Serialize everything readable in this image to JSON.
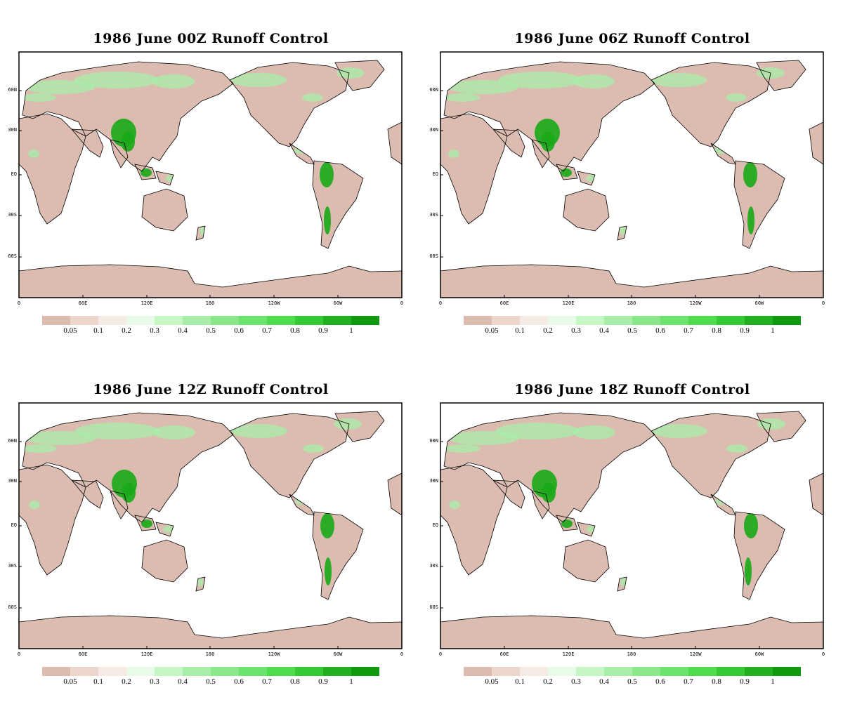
{
  "panels": [
    {
      "title": "1986 June 00Z Runoff Control"
    },
    {
      "title": "1986  June 06Z Runoff Control"
    },
    {
      "title": "1986  June 12Z Runoff Control"
    },
    {
      "title": "1986  June 18Z Runoff Control"
    }
  ],
  "lat_ticks": [
    "60N",
    "30N",
    "EQ",
    "30S",
    "60S"
  ],
  "lon_ticks": [
    "0",
    "60E",
    "120E",
    "180",
    "120W",
    "60W",
    "0"
  ],
  "colorbar": {
    "labels": [
      "0.05",
      "0.1",
      "0.2",
      "0.3",
      "0.4",
      "0.5",
      "0.6",
      "0.7",
      "0.8",
      "0.9",
      "1"
    ],
    "colors": [
      "#dcbcb0",
      "#ecd6cc",
      "#f6eae4",
      "#e8fbe8",
      "#c6f5c6",
      "#a8eea8",
      "#8ae88a",
      "#6ce36c",
      "#4fdc4f",
      "#36c936",
      "#22b022",
      "#109a10"
    ]
  },
  "palette": {
    "land": "#dcbcb0",
    "ocean": "#ffffff",
    "green_light": "#a8eea8",
    "green_dark": "#18a818",
    "coast": "#000000"
  }
}
